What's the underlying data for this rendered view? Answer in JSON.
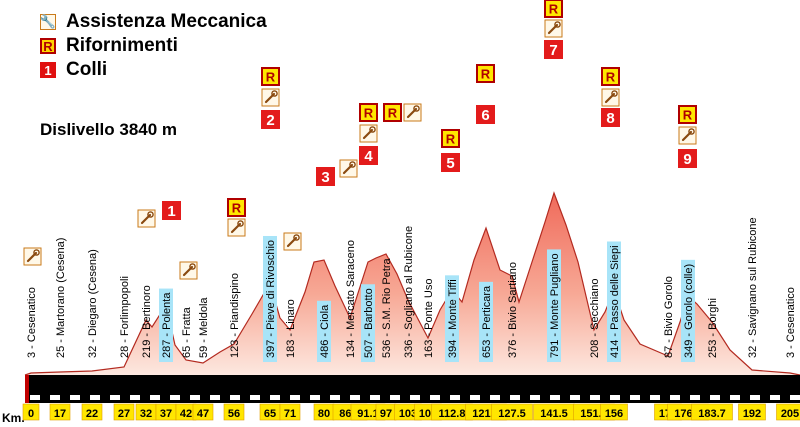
{
  "legend": {
    "assistenza": "Assistenza Meccanica",
    "rifornimenti": "Rifornimenti",
    "colli": "Colli"
  },
  "dislivello": "Dislivello 3840 m",
  "km_label": "Km.",
  "colors": {
    "profile_fill_top": "#f06a5a",
    "profile_fill_bottom": "#fde8e0",
    "cyan": "#a8e4f8",
    "red": "#e31b1b",
    "yellow": "#ffe600"
  },
  "places": [
    {
      "text": "3 - Cesenatico",
      "km": "0"
    },
    {
      "text": "25 - Martorano (Cesena)",
      "km": "17"
    },
    {
      "text": "32 - Diegaro (Cesena)",
      "km": "22"
    },
    {
      "text": "28 - Forlimpopoli",
      "km": "27"
    },
    {
      "text": "219 - Bertinoro",
      "km": "32"
    },
    {
      "text": "287 - Polenta",
      "km": "37"
    },
    {
      "text": "65 - Fratta",
      "km": "42"
    },
    {
      "text": "59 - Meldola",
      "km": "47"
    },
    {
      "text": "123 - Piandispino",
      "km": "56"
    },
    {
      "text": "397 - Pieve di Rivoschio",
      "km": "65"
    },
    {
      "text": "183 - Linaro",
      "km": "71"
    },
    {
      "text": "486 - Ciola",
      "km": "80"
    },
    {
      "text": "134 - Mercato Saraceno",
      "km": "86.5"
    },
    {
      "text": "507 - Barbotto",
      "km": "91.1"
    },
    {
      "text": "536 - S.M. Rio Petra",
      "km": "97"
    },
    {
      "text": "336 - Sogliano al Rubicone",
      "km": "103"
    },
    {
      "text": "163 - Ponte Uso",
      "km": "107"
    },
    {
      "text": "394 - Monte Tiffi",
      "km": "112.8"
    },
    {
      "text": "653 - Perticara",
      "km": "121.8"
    },
    {
      "text": "376 - Bivio Sartiano",
      "km": "127.5"
    },
    {
      "text": "791 - Monte Pugliano",
      "km": "141.5"
    },
    {
      "text": "208 - Secchiano",
      "km": "151.7"
    },
    {
      "text": "414 - Passo delle Siepi",
      "km": "156"
    },
    {
      "text": "87 - Bivio Gorolo",
      "km": "172"
    },
    {
      "text": "349 - Gorolo (colle)",
      "km": "176.4"
    },
    {
      "text": "253 - Borghi",
      "km": "183.7"
    },
    {
      "text": "32 - Savignano sul Rubicone",
      "km": "192"
    },
    {
      "text": "3 - Cesenatico",
      "km": "205"
    }
  ],
  "colli_numbers": [
    "1",
    "2",
    "3",
    "4",
    "5",
    "6",
    "7",
    "8",
    "9"
  ],
  "refuel_letter": "R"
}
